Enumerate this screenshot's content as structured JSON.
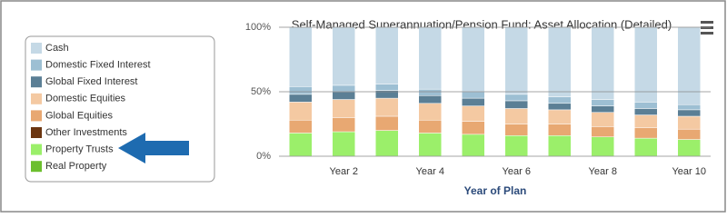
{
  "chart_data": {
    "type": "stacked-bar",
    "title": "Self-Managed Superannuation/Pension Fund: Asset Allocation (Detailed)",
    "x_label": "Year of Plan",
    "categories": [
      null,
      "Year 2",
      null,
      "Year 4",
      null,
      "Year 6",
      null,
      "Year 8",
      null,
      "Year 10"
    ],
    "ylim": [
      0,
      100
    ],
    "yticks": [
      {
        "value": 0,
        "label": "0%"
      },
      {
        "value": 50,
        "label": "50%"
      },
      {
        "value": 100,
        "label": "100%"
      }
    ],
    "grid": true,
    "series": [
      {
        "name": "Cash",
        "color": "#c5d9e6",
        "values": [
          46,
          45,
          44,
          48,
          50,
          52,
          54,
          56,
          58,
          60
        ]
      },
      {
        "name": "Domestic Fixed Interest",
        "color": "#9dbfd3",
        "values": [
          6,
          5,
          5,
          5,
          5,
          5,
          5,
          5,
          5,
          4
        ]
      },
      {
        "name": "Global Fixed Interest",
        "color": "#5b7f95",
        "values": [
          6,
          6,
          6,
          6,
          6,
          6,
          5,
          5,
          5,
          5
        ]
      },
      {
        "name": "Domestic Equities",
        "color": "#f4c9a2",
        "values": [
          14,
          14,
          14,
          13,
          12,
          12,
          11,
          11,
          10,
          10
        ]
      },
      {
        "name": "Global Equities",
        "color": "#e8a872",
        "values": [
          10,
          11,
          11,
          10,
          10,
          9,
          9,
          8,
          8,
          8
        ]
      },
      {
        "name": "Other Investments",
        "color": "#6b3510",
        "values": [
          0,
          0,
          0,
          0,
          0,
          0,
          0,
          0,
          0,
          0
        ]
      },
      {
        "name": "Property Trusts",
        "color": "#9bef6a",
        "values": [
          18,
          19,
          20,
          18,
          17,
          16,
          16,
          15,
          14,
          13
        ]
      },
      {
        "name": "Real Property",
        "color": "#6cbf2e",
        "values": [
          0,
          0,
          0,
          0,
          0,
          0,
          0,
          0,
          0,
          0
        ]
      }
    ]
  }
}
